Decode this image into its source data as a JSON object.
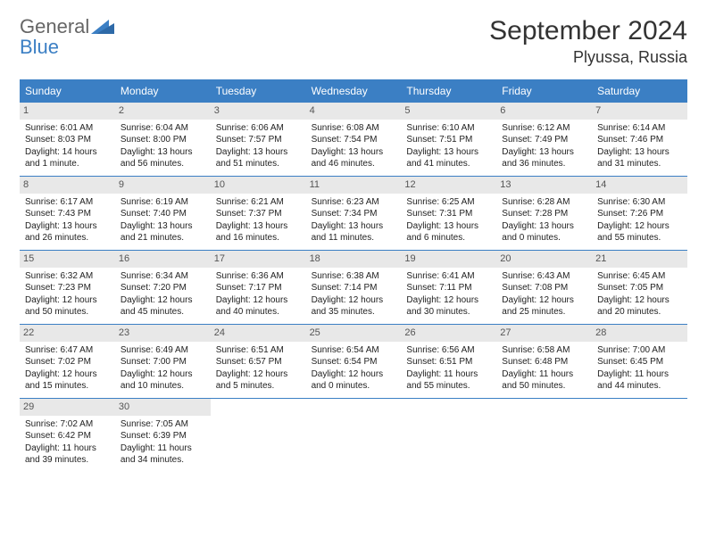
{
  "logo": {
    "word1": "General",
    "word2": "Blue"
  },
  "title": "September 2024",
  "location": "Plyussa, Russia",
  "colors": {
    "header_bg": "#3b7fc4",
    "header_text": "#ffffff",
    "daynum_bg": "#e8e8e8",
    "border": "#3b7fc4",
    "text": "#222222",
    "logo_gray": "#666666",
    "logo_blue": "#3b7fc4"
  },
  "dow": [
    "Sunday",
    "Monday",
    "Tuesday",
    "Wednesday",
    "Thursday",
    "Friday",
    "Saturday"
  ],
  "weeks": [
    [
      {
        "n": "1",
        "sr": "Sunrise: 6:01 AM",
        "ss": "Sunset: 8:03 PM",
        "dl": "Daylight: 14 hours and 1 minute."
      },
      {
        "n": "2",
        "sr": "Sunrise: 6:04 AM",
        "ss": "Sunset: 8:00 PM",
        "dl": "Daylight: 13 hours and 56 minutes."
      },
      {
        "n": "3",
        "sr": "Sunrise: 6:06 AM",
        "ss": "Sunset: 7:57 PM",
        "dl": "Daylight: 13 hours and 51 minutes."
      },
      {
        "n": "4",
        "sr": "Sunrise: 6:08 AM",
        "ss": "Sunset: 7:54 PM",
        "dl": "Daylight: 13 hours and 46 minutes."
      },
      {
        "n": "5",
        "sr": "Sunrise: 6:10 AM",
        "ss": "Sunset: 7:51 PM",
        "dl": "Daylight: 13 hours and 41 minutes."
      },
      {
        "n": "6",
        "sr": "Sunrise: 6:12 AM",
        "ss": "Sunset: 7:49 PM",
        "dl": "Daylight: 13 hours and 36 minutes."
      },
      {
        "n": "7",
        "sr": "Sunrise: 6:14 AM",
        "ss": "Sunset: 7:46 PM",
        "dl": "Daylight: 13 hours and 31 minutes."
      }
    ],
    [
      {
        "n": "8",
        "sr": "Sunrise: 6:17 AM",
        "ss": "Sunset: 7:43 PM",
        "dl": "Daylight: 13 hours and 26 minutes."
      },
      {
        "n": "9",
        "sr": "Sunrise: 6:19 AM",
        "ss": "Sunset: 7:40 PM",
        "dl": "Daylight: 13 hours and 21 minutes."
      },
      {
        "n": "10",
        "sr": "Sunrise: 6:21 AM",
        "ss": "Sunset: 7:37 PM",
        "dl": "Daylight: 13 hours and 16 minutes."
      },
      {
        "n": "11",
        "sr": "Sunrise: 6:23 AM",
        "ss": "Sunset: 7:34 PM",
        "dl": "Daylight: 13 hours and 11 minutes."
      },
      {
        "n": "12",
        "sr": "Sunrise: 6:25 AM",
        "ss": "Sunset: 7:31 PM",
        "dl": "Daylight: 13 hours and 6 minutes."
      },
      {
        "n": "13",
        "sr": "Sunrise: 6:28 AM",
        "ss": "Sunset: 7:28 PM",
        "dl": "Daylight: 13 hours and 0 minutes."
      },
      {
        "n": "14",
        "sr": "Sunrise: 6:30 AM",
        "ss": "Sunset: 7:26 PM",
        "dl": "Daylight: 12 hours and 55 minutes."
      }
    ],
    [
      {
        "n": "15",
        "sr": "Sunrise: 6:32 AM",
        "ss": "Sunset: 7:23 PM",
        "dl": "Daylight: 12 hours and 50 minutes."
      },
      {
        "n": "16",
        "sr": "Sunrise: 6:34 AM",
        "ss": "Sunset: 7:20 PM",
        "dl": "Daylight: 12 hours and 45 minutes."
      },
      {
        "n": "17",
        "sr": "Sunrise: 6:36 AM",
        "ss": "Sunset: 7:17 PM",
        "dl": "Daylight: 12 hours and 40 minutes."
      },
      {
        "n": "18",
        "sr": "Sunrise: 6:38 AM",
        "ss": "Sunset: 7:14 PM",
        "dl": "Daylight: 12 hours and 35 minutes."
      },
      {
        "n": "19",
        "sr": "Sunrise: 6:41 AM",
        "ss": "Sunset: 7:11 PM",
        "dl": "Daylight: 12 hours and 30 minutes."
      },
      {
        "n": "20",
        "sr": "Sunrise: 6:43 AM",
        "ss": "Sunset: 7:08 PM",
        "dl": "Daylight: 12 hours and 25 minutes."
      },
      {
        "n": "21",
        "sr": "Sunrise: 6:45 AM",
        "ss": "Sunset: 7:05 PM",
        "dl": "Daylight: 12 hours and 20 minutes."
      }
    ],
    [
      {
        "n": "22",
        "sr": "Sunrise: 6:47 AM",
        "ss": "Sunset: 7:02 PM",
        "dl": "Daylight: 12 hours and 15 minutes."
      },
      {
        "n": "23",
        "sr": "Sunrise: 6:49 AM",
        "ss": "Sunset: 7:00 PM",
        "dl": "Daylight: 12 hours and 10 minutes."
      },
      {
        "n": "24",
        "sr": "Sunrise: 6:51 AM",
        "ss": "Sunset: 6:57 PM",
        "dl": "Daylight: 12 hours and 5 minutes."
      },
      {
        "n": "25",
        "sr": "Sunrise: 6:54 AM",
        "ss": "Sunset: 6:54 PM",
        "dl": "Daylight: 12 hours and 0 minutes."
      },
      {
        "n": "26",
        "sr": "Sunrise: 6:56 AM",
        "ss": "Sunset: 6:51 PM",
        "dl": "Daylight: 11 hours and 55 minutes."
      },
      {
        "n": "27",
        "sr": "Sunrise: 6:58 AM",
        "ss": "Sunset: 6:48 PM",
        "dl": "Daylight: 11 hours and 50 minutes."
      },
      {
        "n": "28",
        "sr": "Sunrise: 7:00 AM",
        "ss": "Sunset: 6:45 PM",
        "dl": "Daylight: 11 hours and 44 minutes."
      }
    ],
    [
      {
        "n": "29",
        "sr": "Sunrise: 7:02 AM",
        "ss": "Sunset: 6:42 PM",
        "dl": "Daylight: 11 hours and 39 minutes."
      },
      {
        "n": "30",
        "sr": "Sunrise: 7:05 AM",
        "ss": "Sunset: 6:39 PM",
        "dl": "Daylight: 11 hours and 34 minutes."
      },
      null,
      null,
      null,
      null,
      null
    ]
  ]
}
